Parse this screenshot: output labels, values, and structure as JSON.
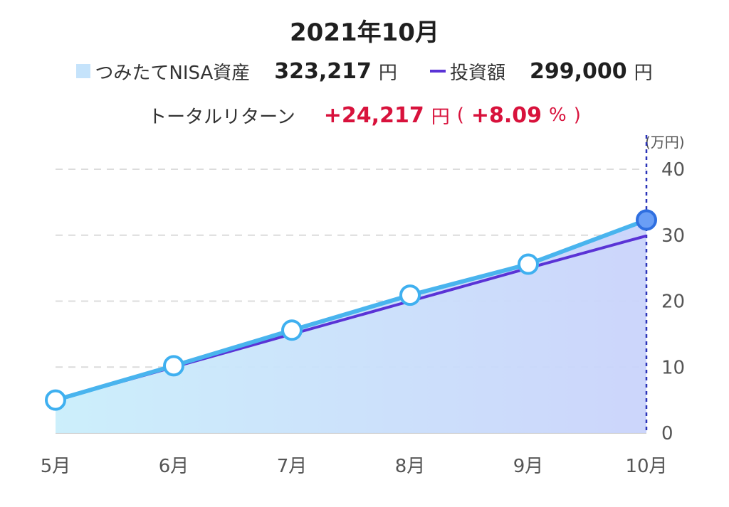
{
  "chart_data": {
    "type": "area",
    "title": "2021年10月",
    "legend": [
      {
        "name": "つみたてNISA資産",
        "value": "323,217",
        "unit": "円",
        "color": "#c5e3fb"
      },
      {
        "name": "投資額",
        "value": "299,000",
        "unit": "円",
        "color": "#5a33d6"
      }
    ],
    "total_return": {
      "label": "トータルリターン",
      "value": "+24,217",
      "unit": "円",
      "paren_open": "(",
      "percent": "+8.09",
      "percent_unit": "%",
      "paren_close": ")"
    },
    "y_unit": "(万円)",
    "categories": [
      "5月",
      "6月",
      "7月",
      "8月",
      "9月",
      "10月"
    ],
    "yticks": [
      0,
      10,
      20,
      30,
      40
    ],
    "ylim": [
      0,
      40
    ],
    "series": [
      {
        "name": "つみたてNISA資産",
        "values": [
          5.0,
          10.2,
          15.6,
          20.9,
          25.6,
          32.3
        ],
        "color": "#4a90e2"
      },
      {
        "name": "投資額",
        "values": [
          5.0,
          10.0,
          15.0,
          20.0,
          25.0,
          29.9
        ],
        "color": "#5a33d6"
      }
    ],
    "selected_index": 5,
    "grid": true,
    "colors": {
      "area_left": "#c9eefb",
      "area_right": "#c9d3fb",
      "cursor": "#2a33b8",
      "marker_fill": "#ffffff",
      "marker_stroke": "#3fb0f0",
      "selected_fill": "#6a9ef5",
      "selected_stroke": "#2f6fe0"
    }
  }
}
